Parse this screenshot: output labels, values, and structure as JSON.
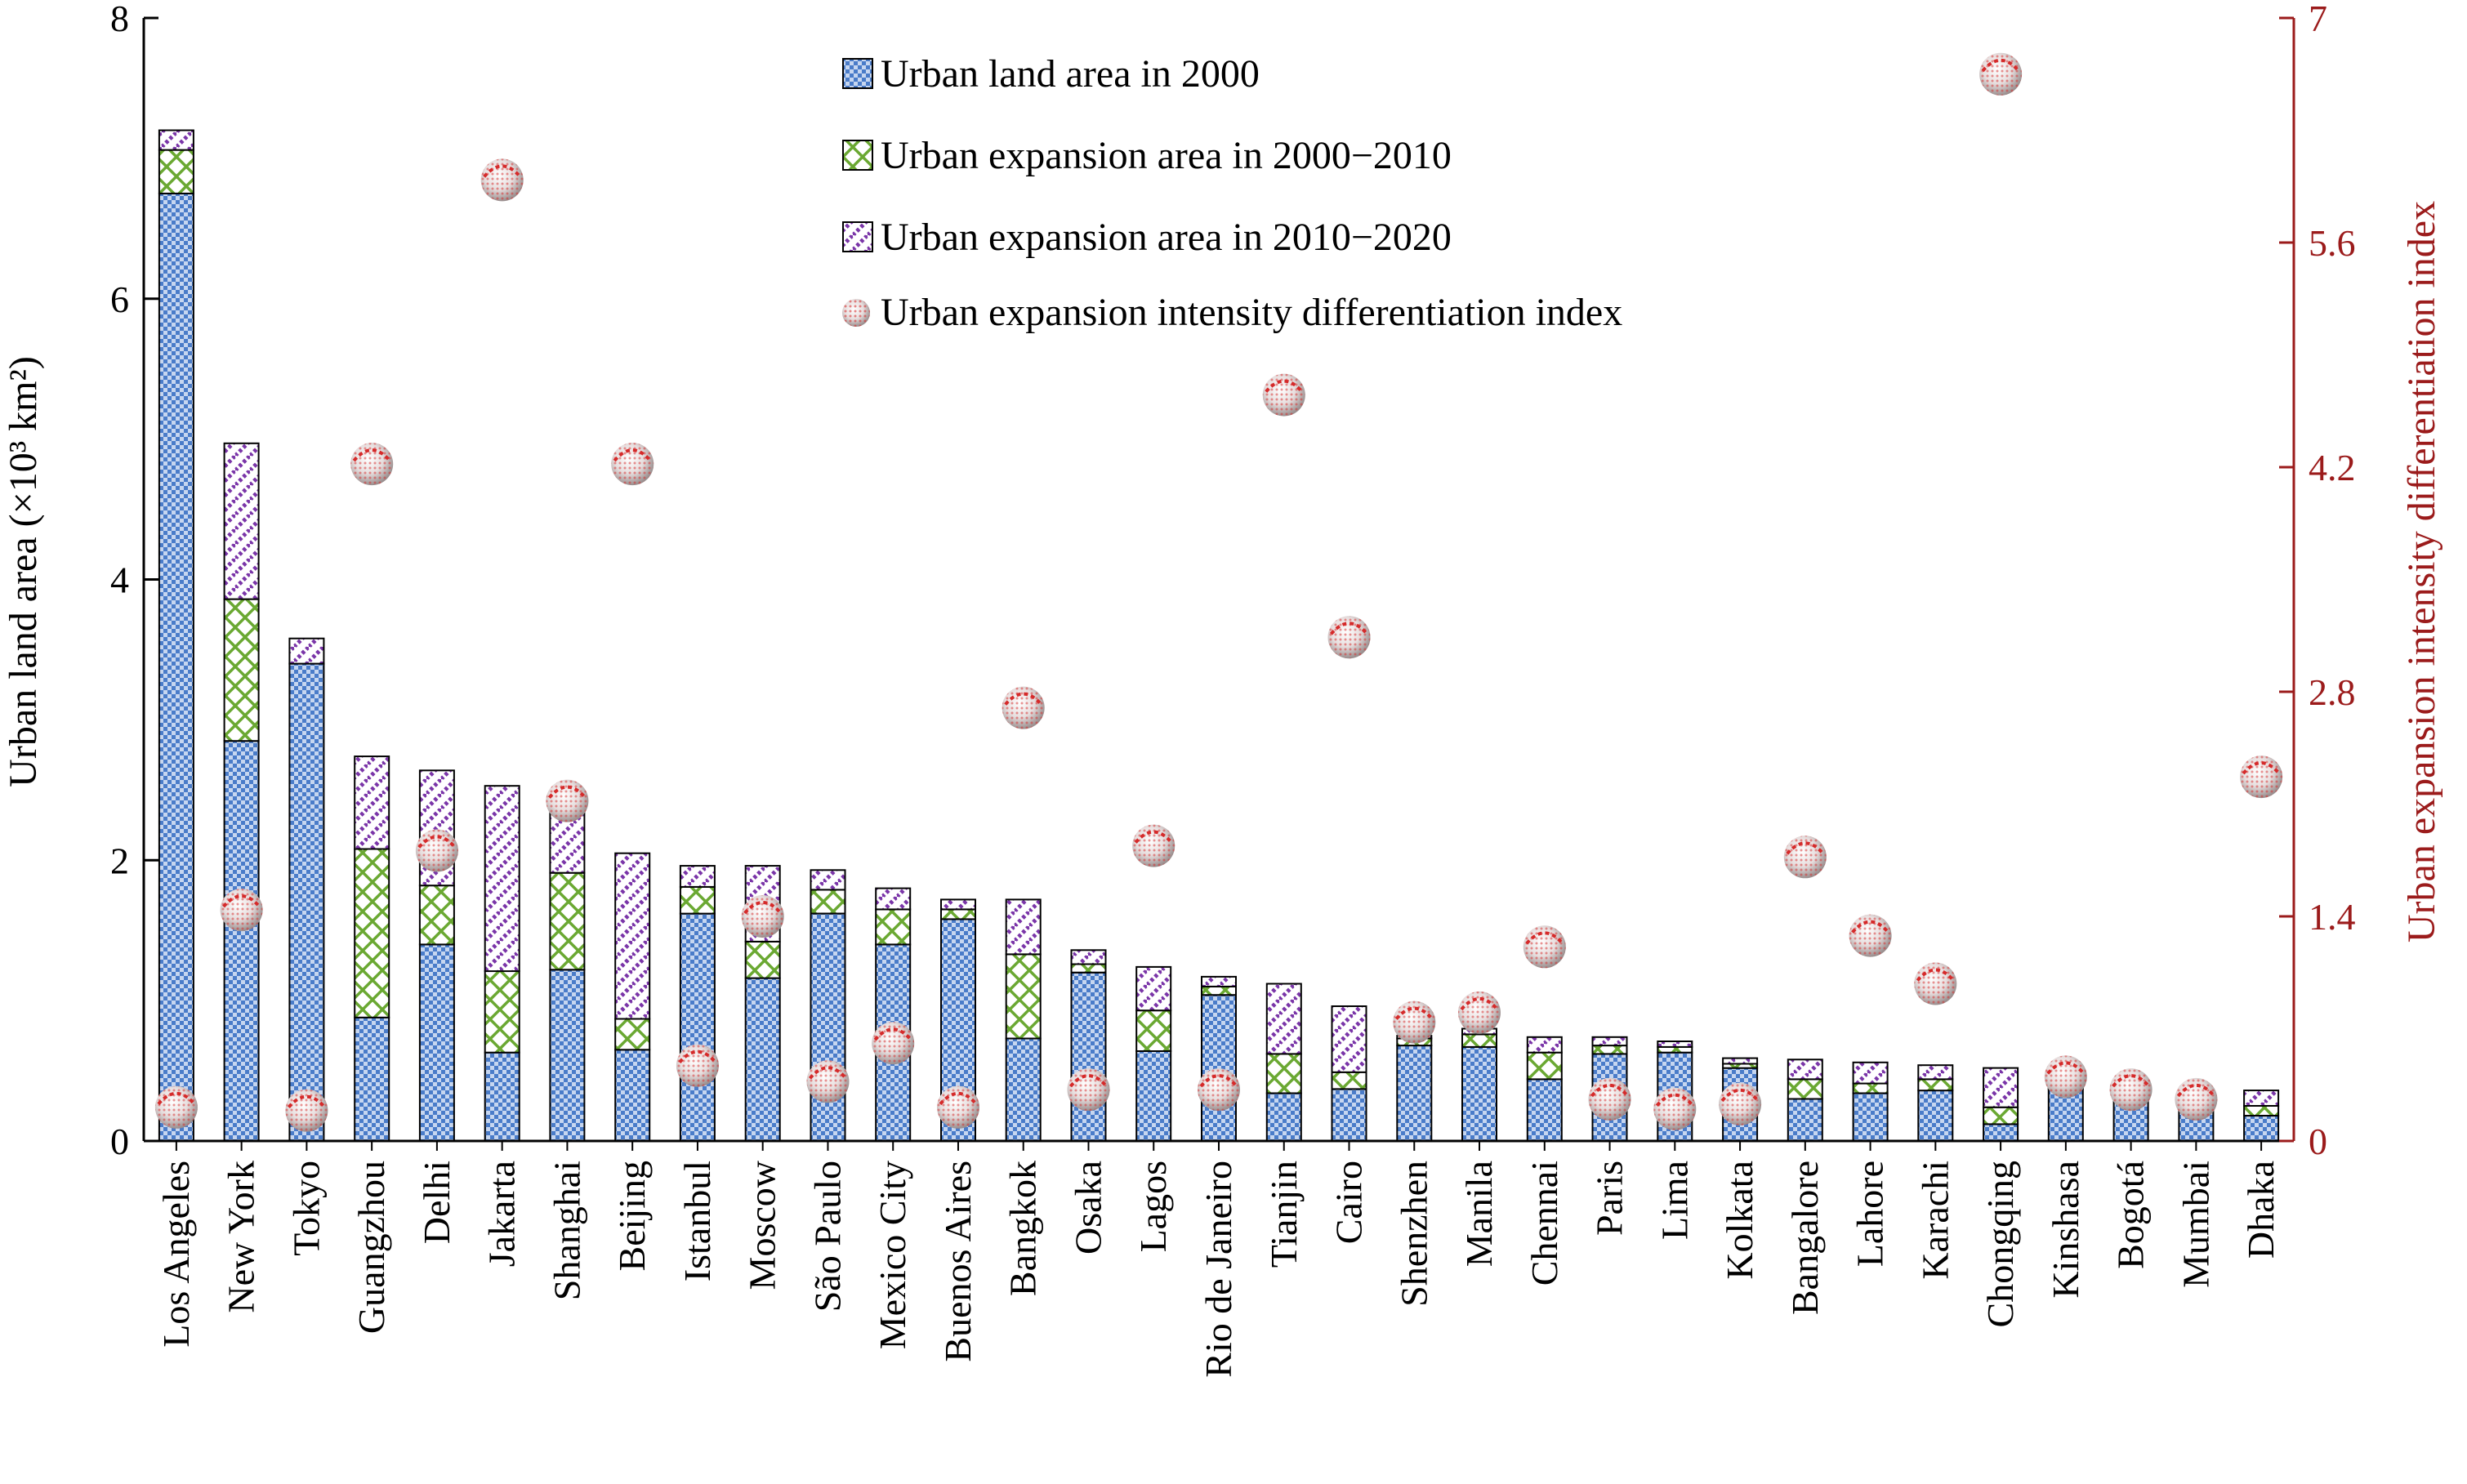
{
  "chart_data": {
    "type": "bar",
    "subtype": "stacked-bar-with-scatter",
    "title": "",
    "ylabel": "Urban land area (×10³ km²)",
    "ylabel_right": "Urban expansion intensity differentiation index",
    "ylim": [
      0,
      8
    ],
    "yticks": [
      "0",
      "2",
      "4",
      "6",
      "8"
    ],
    "ylim_right": [
      0,
      7
    ],
    "yticks_right": [
      "0",
      "1.4",
      "2.8",
      "4.2",
      "5.6",
      "7"
    ],
    "legend_position": "top-center",
    "categories": [
      "Los Angeles",
      "New York",
      "Tokyo",
      "Guangzhou",
      "Delhi",
      "Jakarta",
      "Shanghai",
      "Beijing",
      "Istanbul",
      "Moscow",
      "São Paulo",
      "Mexico City",
      "Buenos Aires",
      "Bangkok",
      "Osaka",
      "Lagos",
      "Rio de Janeiro",
      "Tianjin",
      "Cairo",
      "Shenzhen",
      "Manila",
      "Chennai",
      "Paris",
      "Lima",
      "Kolkata",
      "Bangalore",
      "Lahore",
      "Karachi",
      "Chongqing",
      "Kinshasa",
      "Bogotá",
      "Mumbai",
      "Dhaka"
    ],
    "series": [
      {
        "name": "Urban land area in 2000",
        "kind": "bar",
        "axis": "left",
        "color": "#4a7cc9",
        "values": [
          6.75,
          2.85,
          3.4,
          0.88,
          1.4,
          0.63,
          1.22,
          0.65,
          1.62,
          1.16,
          1.62,
          1.4,
          1.58,
          0.73,
          1.2,
          0.64,
          1.04,
          0.34,
          0.37,
          0.68,
          0.67,
          0.44,
          0.62,
          0.63,
          0.52,
          0.3,
          0.34,
          0.36,
          0.12,
          0.37,
          0.3,
          0.24,
          0.18
        ]
      },
      {
        "name": "Urban expansion area in 2000−2010",
        "kind": "bar",
        "axis": "left",
        "color": "#5da02f",
        "values": [
          0.31,
          1.01,
          0.0,
          1.2,
          0.42,
          0.58,
          0.69,
          0.22,
          0.19,
          0.26,
          0.17,
          0.25,
          0.07,
          0.6,
          0.06,
          0.29,
          0.06,
          0.28,
          0.12,
          0.05,
          0.09,
          0.19,
          0.06,
          0.04,
          0.03,
          0.14,
          0.07,
          0.08,
          0.12,
          0.02,
          0.02,
          0.02,
          0.07
        ]
      },
      {
        "name": "Urban expansion area in 2010−2020",
        "kind": "bar",
        "axis": "left",
        "color": "#7a35a8",
        "values": [
          0.14,
          1.11,
          0.18,
          0.66,
          0.82,
          1.32,
          0.53,
          1.18,
          0.15,
          0.54,
          0.14,
          0.15,
          0.07,
          0.39,
          0.1,
          0.31,
          0.07,
          0.5,
          0.47,
          0.02,
          0.04,
          0.11,
          0.06,
          0.04,
          0.04,
          0.14,
          0.15,
          0.1,
          0.28,
          0.03,
          0.03,
          0.02,
          0.11
        ]
      },
      {
        "name": "Urban expansion intensity differentiation index",
        "kind": "scatter",
        "axis": "right",
        "color": "#c8262a",
        "values": [
          0.21,
          1.44,
          0.19,
          4.22,
          1.81,
          5.99,
          2.12,
          4.22,
          0.47,
          1.4,
          0.37,
          0.61,
          0.21,
          2.7,
          0.32,
          1.84,
          0.32,
          4.65,
          3.14,
          0.74,
          0.8,
          1.21,
          0.26,
          0.2,
          0.23,
          1.77,
          1.28,
          0.98,
          6.65,
          0.4,
          0.32,
          0.26,
          2.27
        ]
      }
    ]
  }
}
